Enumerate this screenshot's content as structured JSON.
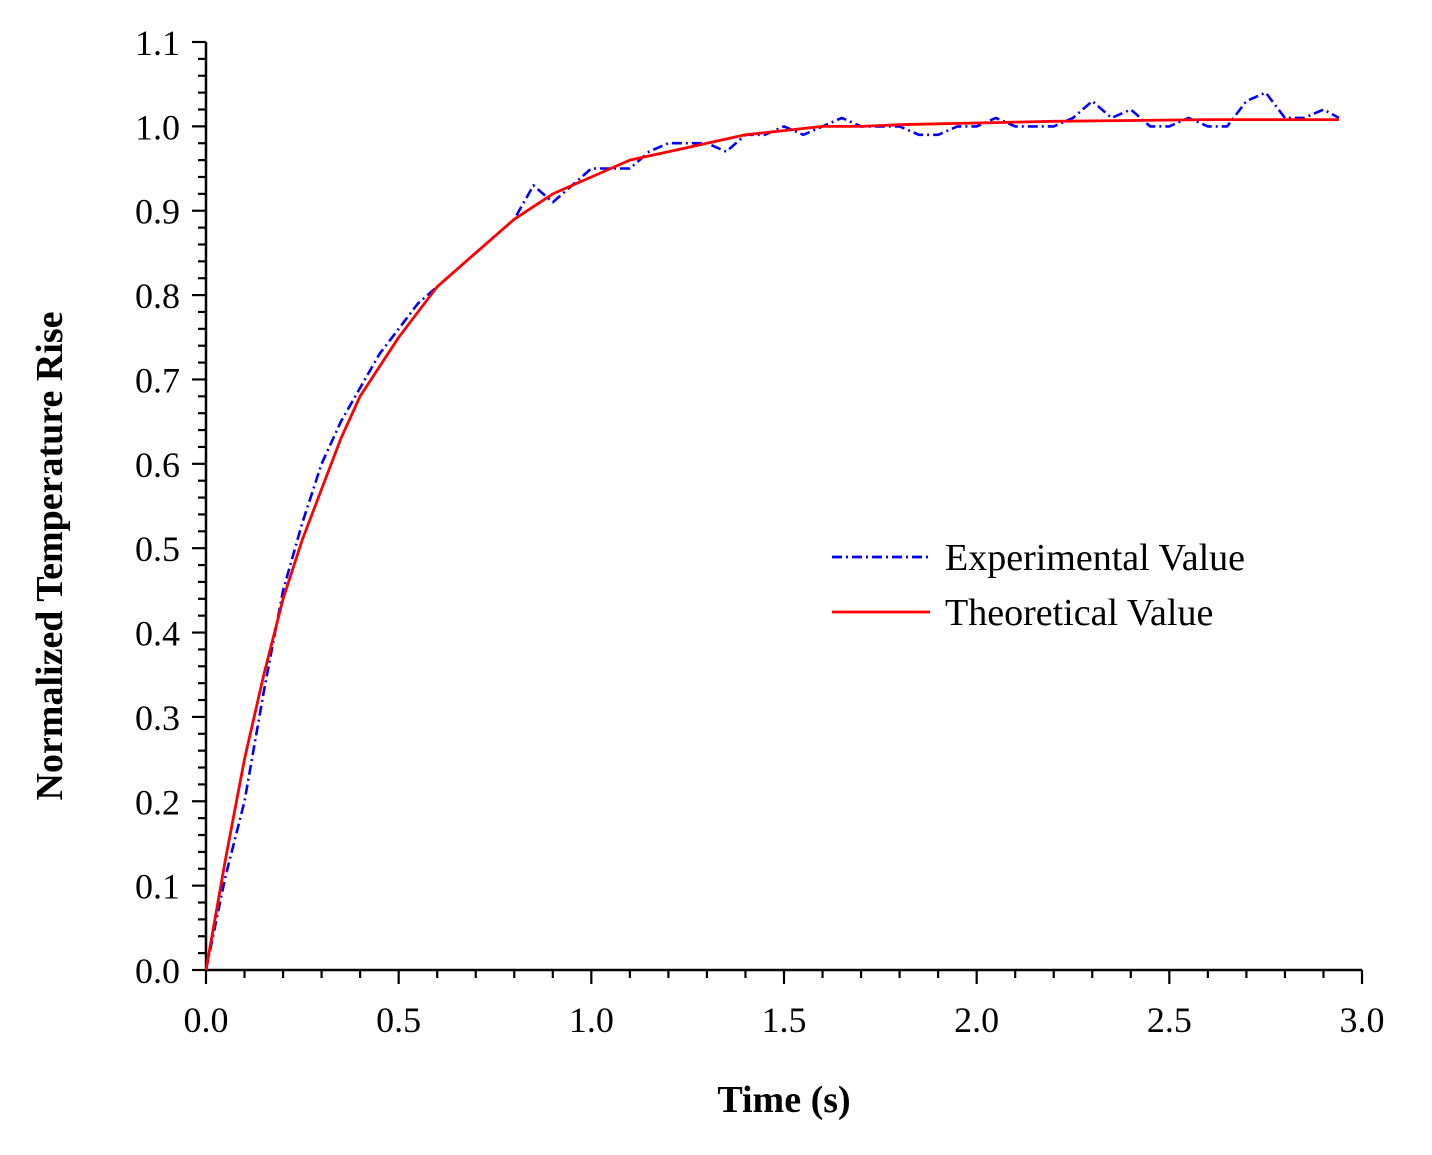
{
  "chart_data": {
    "type": "line",
    "title": "",
    "xlabel": "Time (s)",
    "ylabel": "Normalized Temperature Rise",
    "xlim": [
      0.0,
      3.0
    ],
    "ylim": [
      0.0,
      1.1
    ],
    "x_ticks": [
      "0.0",
      "0.5",
      "1.0",
      "1.5",
      "2.0",
      "2.5",
      "3.0"
    ],
    "y_ticks": [
      "0.0",
      "0.1",
      "0.2",
      "0.3",
      "0.4",
      "0.5",
      "0.6",
      "0.7",
      "0.8",
      "0.9",
      "1.0",
      "1.1"
    ],
    "grid": false,
    "legend_position": "center-right",
    "series": [
      {
        "name": "Experimental Value",
        "color": "#0000ff",
        "style": "dash-dot",
        "x": [
          0.0,
          0.05,
          0.1,
          0.15,
          0.2,
          0.25,
          0.3,
          0.35,
          0.4,
          0.45,
          0.5,
          0.55,
          0.6,
          0.65,
          0.7,
          0.75,
          0.8,
          0.85,
          0.9,
          0.95,
          1.0,
          1.05,
          1.1,
          1.15,
          1.2,
          1.25,
          1.3,
          1.35,
          1.4,
          1.45,
          1.5,
          1.55,
          1.6,
          1.65,
          1.7,
          1.75,
          1.8,
          1.85,
          1.9,
          1.95,
          2.0,
          2.05,
          2.1,
          2.15,
          2.2,
          2.25,
          2.3,
          2.35,
          2.4,
          2.45,
          2.5,
          2.55,
          2.6,
          2.65,
          2.7,
          2.75,
          2.8,
          2.85,
          2.9,
          2.94
        ],
        "y": [
          0.0,
          0.11,
          0.2,
          0.33,
          0.45,
          0.53,
          0.6,
          0.65,
          0.69,
          0.73,
          0.76,
          0.79,
          0.81,
          0.83,
          0.85,
          0.87,
          0.89,
          0.93,
          0.91,
          0.93,
          0.95,
          0.95,
          0.95,
          0.97,
          0.98,
          0.98,
          0.98,
          0.97,
          0.99,
          0.99,
          1.0,
          0.99,
          1.0,
          1.01,
          1.0,
          1.0,
          1.0,
          0.99,
          0.99,
          1.0,
          1.0,
          1.01,
          1.0,
          1.0,
          1.0,
          1.01,
          1.03,
          1.01,
          1.02,
          1.0,
          1.0,
          1.01,
          1.0,
          1.0,
          1.03,
          1.04,
          1.01,
          1.01,
          1.02,
          1.01
        ]
      },
      {
        "name": "Theoretical Value",
        "color": "#ff0000",
        "style": "solid",
        "x": [
          0.0,
          0.05,
          0.1,
          0.15,
          0.2,
          0.25,
          0.3,
          0.35,
          0.4,
          0.5,
          0.6,
          0.7,
          0.8,
          0.9,
          1.0,
          1.1,
          1.2,
          1.3,
          1.4,
          1.5,
          1.6,
          1.7,
          1.8,
          1.9,
          2.0,
          2.2,
          2.4,
          2.6,
          2.8,
          2.94
        ],
        "y": [
          0.0,
          0.13,
          0.25,
          0.35,
          0.44,
          0.51,
          0.57,
          0.63,
          0.68,
          0.75,
          0.81,
          0.85,
          0.89,
          0.92,
          0.94,
          0.96,
          0.97,
          0.98,
          0.99,
          0.995,
          1.0,
          1.0,
          1.002,
          1.003,
          1.004,
          1.006,
          1.007,
          1.008,
          1.008,
          1.008
        ]
      }
    ]
  }
}
